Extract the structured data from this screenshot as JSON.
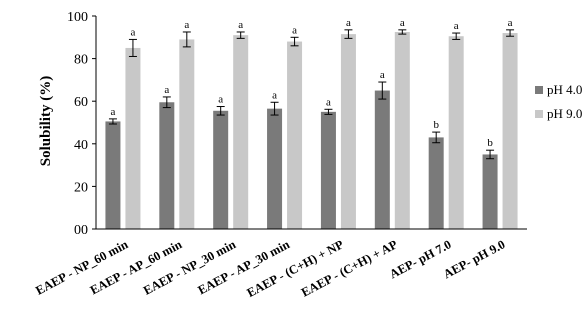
{
  "chart_data": {
    "type": "bar",
    "title": "",
    "xlabel": "",
    "ylabel": "Solubility (%)",
    "ylim": [
      0,
      100
    ],
    "yticks": [
      "00",
      "20",
      "40",
      "60",
      "80",
      "100"
    ],
    "categories": [
      "EAEP - NP_60 min",
      "EAEP - AP_60 min",
      "EAEP - NP_30 min",
      "EAEP - AP_30 min",
      "EAEP - (C+H) + NP",
      "EAEP - (C+H) + AP",
      "AEP- pH 7.0",
      "AEP- pH 9.0"
    ],
    "series": [
      {
        "name": "pH 4.0",
        "color": "#7a7a7a",
        "values": [
          50.5,
          59.5,
          55.5,
          56.5,
          55,
          65,
          43,
          35
        ],
        "errors": [
          1.2,
          2.5,
          2.0,
          3.0,
          1.2,
          4.0,
          2.5,
          2.0
        ],
        "labels": [
          "a",
          "a",
          "a",
          "a",
          "a",
          "a",
          "b",
          "b"
        ]
      },
      {
        "name": "pH 9.0",
        "color": "#c8c8c8",
        "values": [
          85,
          89,
          91,
          88,
          91.5,
          92.5,
          90.5,
          92
        ],
        "errors": [
          4.0,
          3.5,
          1.5,
          2.0,
          2.0,
          1.0,
          1.5,
          1.5
        ],
        "labels": [
          "a",
          "a",
          "a",
          "a",
          "a",
          "a",
          "a",
          "a"
        ]
      }
    ],
    "legend": "right",
    "grid": false
  }
}
